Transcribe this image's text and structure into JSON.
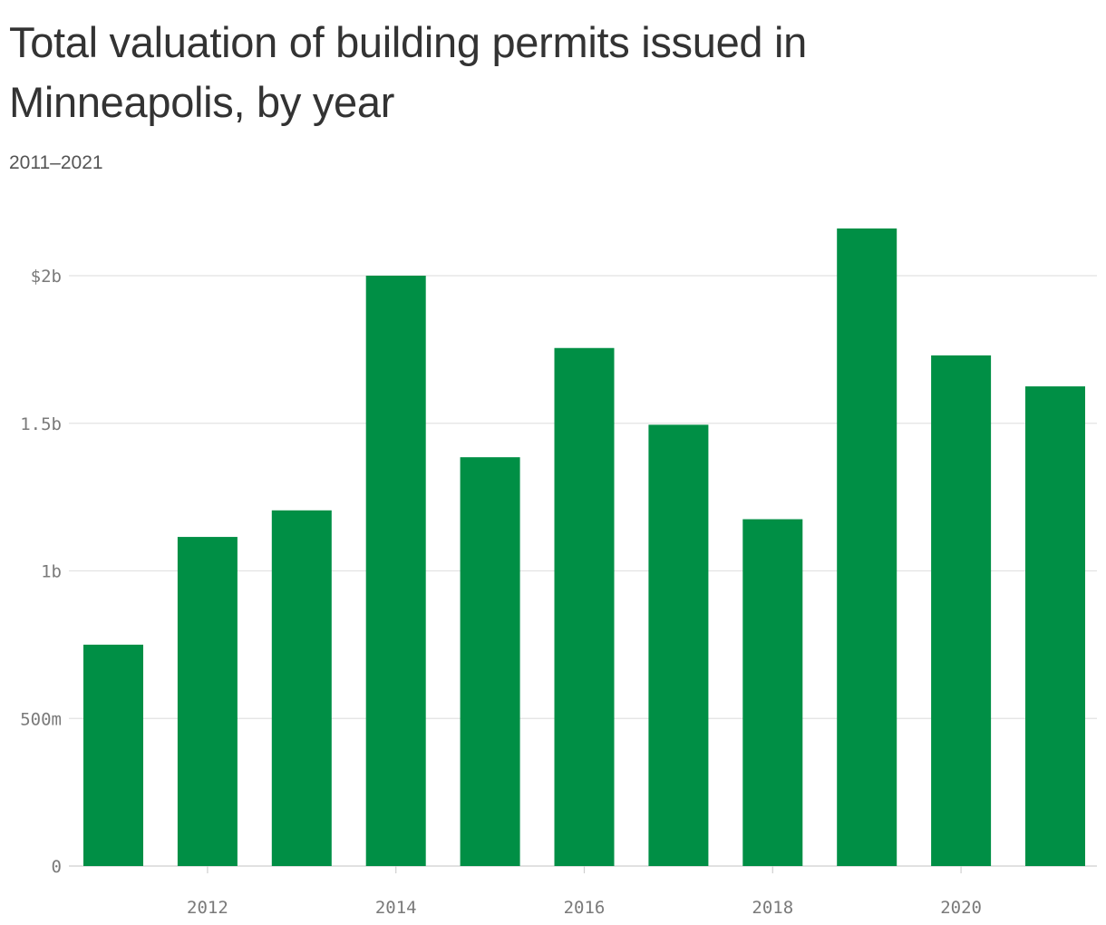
{
  "title": "Total valuation of building permits issued in Minneapolis, by year",
  "subtitle": "2011–2021",
  "colors": {
    "bar": "#008f45",
    "grid": "#e2e2e2",
    "text": "#333333",
    "axis_text": "#7a7a7a"
  },
  "chart_data": {
    "type": "bar",
    "title": "Total valuation of building permits issued in Minneapolis, by year",
    "subtitle": "2011–2021",
    "xlabel": "",
    "ylabel": "",
    "categories": [
      2011,
      2012,
      2013,
      2014,
      2015,
      2016,
      2017,
      2018,
      2019,
      2020,
      2021
    ],
    "values": [
      750000000,
      1115000000,
      1205000000,
      2000000000,
      1385000000,
      1755000000,
      1495000000,
      1175000000,
      2160000000,
      1730000000,
      1625000000
    ],
    "ylim": [
      0,
      2200000000
    ],
    "y_ticks": [
      {
        "value": 0,
        "label": "0"
      },
      {
        "value": 500000000,
        "label": "500m"
      },
      {
        "value": 1000000000,
        "label": "1b"
      },
      {
        "value": 1500000000,
        "label": "1.5b"
      },
      {
        "value": 2000000000,
        "label": "$2b"
      }
    ],
    "x_ticks": [
      {
        "value": 2012,
        "label": "2012"
      },
      {
        "value": 2014,
        "label": "2014"
      },
      {
        "value": 2016,
        "label": "2016"
      },
      {
        "value": 2018,
        "label": "2018"
      },
      {
        "value": 2020,
        "label": "2020"
      }
    ],
    "grid": true,
    "legend": "none"
  }
}
